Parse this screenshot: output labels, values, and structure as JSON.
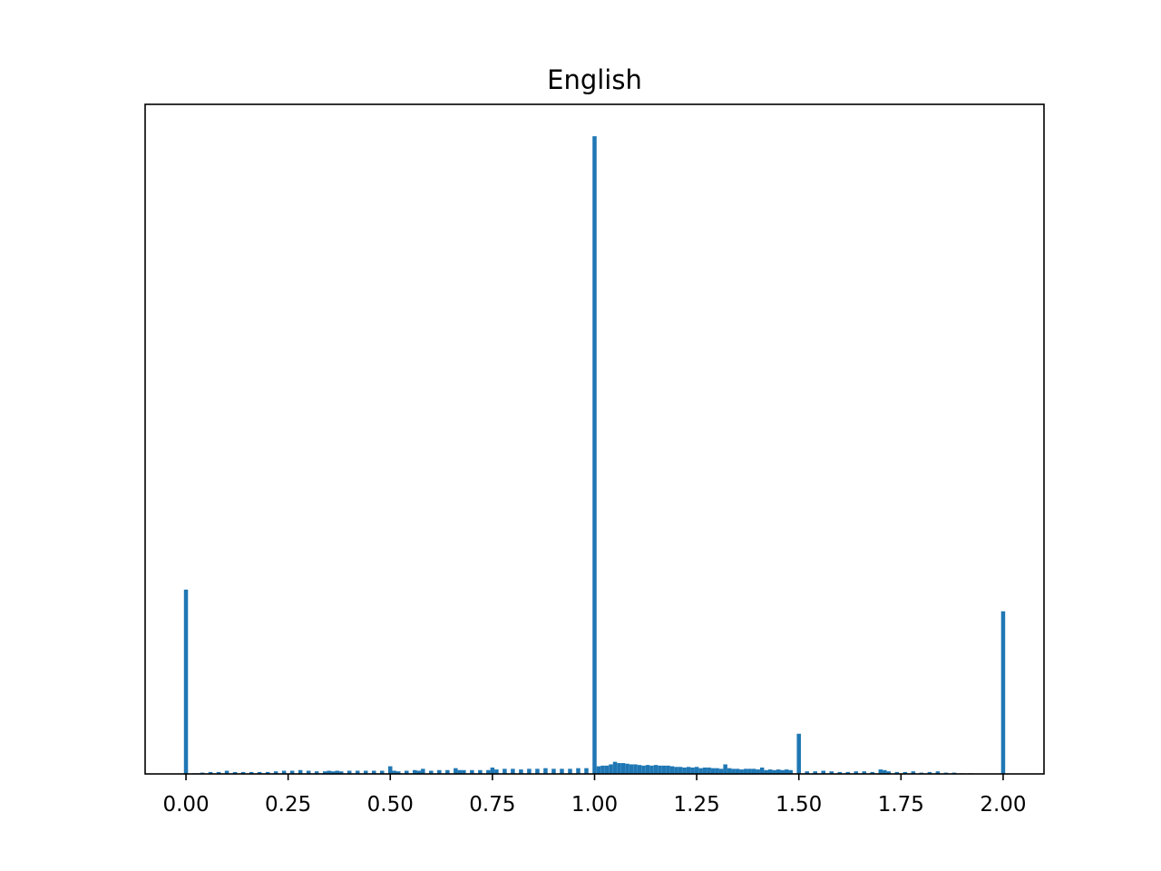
{
  "chart_data": {
    "type": "bar",
    "title": "English",
    "xlabel": "",
    "ylabel": "",
    "xlim": [
      -0.1,
      2.1
    ],
    "ylim": [
      0,
      1.05
    ],
    "x_tick_labels": [
      "0.00",
      "0.25",
      "0.50",
      "0.75",
      "1.00",
      "1.25",
      "1.50",
      "1.75",
      "2.00"
    ],
    "x_tick_values": [
      0,
      0.25,
      0.5,
      0.75,
      1.0,
      1.25,
      1.5,
      1.75,
      2.0
    ],
    "y_ticks_shown": false,
    "bar_color": "#1f77b4",
    "bin_width": 0.01,
    "bins": [
      {
        "x": 0.0,
        "v": 0.289
      },
      {
        "x": 0.02,
        "v": 0.001
      },
      {
        "x": 0.03,
        "v": 0.001
      },
      {
        "x": 0.04,
        "v": 0.002
      },
      {
        "x": 0.06,
        "v": 0.003
      },
      {
        "x": 0.08,
        "v": 0.003
      },
      {
        "x": 0.1,
        "v": 0.005
      },
      {
        "x": 0.12,
        "v": 0.003
      },
      {
        "x": 0.14,
        "v": 0.003
      },
      {
        "x": 0.16,
        "v": 0.003
      },
      {
        "x": 0.18,
        "v": 0.003
      },
      {
        "x": 0.2,
        "v": 0.003
      },
      {
        "x": 0.22,
        "v": 0.004
      },
      {
        "x": 0.24,
        "v": 0.005
      },
      {
        "x": 0.26,
        "v": 0.005
      },
      {
        "x": 0.28,
        "v": 0.006
      },
      {
        "x": 0.3,
        "v": 0.005
      },
      {
        "x": 0.32,
        "v": 0.004
      },
      {
        "x": 0.34,
        "v": 0.004
      },
      {
        "x": 0.35,
        "v": 0.005
      },
      {
        "x": 0.36,
        "v": 0.004
      },
      {
        "x": 0.37,
        "v": 0.005
      },
      {
        "x": 0.38,
        "v": 0.004
      },
      {
        "x": 0.4,
        "v": 0.005
      },
      {
        "x": 0.42,
        "v": 0.005
      },
      {
        "x": 0.44,
        "v": 0.005
      },
      {
        "x": 0.46,
        "v": 0.005
      },
      {
        "x": 0.48,
        "v": 0.005
      },
      {
        "x": 0.5,
        "v": 0.012
      },
      {
        "x": 0.51,
        "v": 0.005
      },
      {
        "x": 0.52,
        "v": 0.004
      },
      {
        "x": 0.54,
        "v": 0.005
      },
      {
        "x": 0.56,
        "v": 0.006
      },
      {
        "x": 0.57,
        "v": 0.005
      },
      {
        "x": 0.58,
        "v": 0.008
      },
      {
        "x": 0.6,
        "v": 0.005
      },
      {
        "x": 0.62,
        "v": 0.006
      },
      {
        "x": 0.64,
        "v": 0.006
      },
      {
        "x": 0.66,
        "v": 0.009
      },
      {
        "x": 0.67,
        "v": 0.006
      },
      {
        "x": 0.68,
        "v": 0.006
      },
      {
        "x": 0.7,
        "v": 0.006
      },
      {
        "x": 0.72,
        "v": 0.006
      },
      {
        "x": 0.74,
        "v": 0.006
      },
      {
        "x": 0.75,
        "v": 0.01
      },
      {
        "x": 0.76,
        "v": 0.007
      },
      {
        "x": 0.78,
        "v": 0.008
      },
      {
        "x": 0.8,
        "v": 0.008
      },
      {
        "x": 0.82,
        "v": 0.007
      },
      {
        "x": 0.84,
        "v": 0.008
      },
      {
        "x": 0.86,
        "v": 0.008
      },
      {
        "x": 0.88,
        "v": 0.009
      },
      {
        "x": 0.9,
        "v": 0.008
      },
      {
        "x": 0.92,
        "v": 0.008
      },
      {
        "x": 0.94,
        "v": 0.008
      },
      {
        "x": 0.96,
        "v": 0.009
      },
      {
        "x": 0.98,
        "v": 0.009
      },
      {
        "x": 1.0,
        "v": 1.0
      },
      {
        "x": 1.01,
        "v": 0.012
      },
      {
        "x": 1.02,
        "v": 0.013
      },
      {
        "x": 1.03,
        "v": 0.013
      },
      {
        "x": 1.04,
        "v": 0.015
      },
      {
        "x": 1.05,
        "v": 0.019
      },
      {
        "x": 1.06,
        "v": 0.017
      },
      {
        "x": 1.07,
        "v": 0.017
      },
      {
        "x": 1.08,
        "v": 0.016
      },
      {
        "x": 1.09,
        "v": 0.015
      },
      {
        "x": 1.1,
        "v": 0.015
      },
      {
        "x": 1.11,
        "v": 0.014
      },
      {
        "x": 1.12,
        "v": 0.013
      },
      {
        "x": 1.13,
        "v": 0.014
      },
      {
        "x": 1.14,
        "v": 0.013
      },
      {
        "x": 1.15,
        "v": 0.014
      },
      {
        "x": 1.16,
        "v": 0.013
      },
      {
        "x": 1.17,
        "v": 0.013
      },
      {
        "x": 1.18,
        "v": 0.013
      },
      {
        "x": 1.19,
        "v": 0.012
      },
      {
        "x": 1.2,
        "v": 0.011
      },
      {
        "x": 1.21,
        "v": 0.011
      },
      {
        "x": 1.22,
        "v": 0.01
      },
      {
        "x": 1.23,
        "v": 0.011
      },
      {
        "x": 1.24,
        "v": 0.01
      },
      {
        "x": 1.25,
        "v": 0.011
      },
      {
        "x": 1.26,
        "v": 0.009
      },
      {
        "x": 1.27,
        "v": 0.01
      },
      {
        "x": 1.28,
        "v": 0.01
      },
      {
        "x": 1.29,
        "v": 0.009
      },
      {
        "x": 1.3,
        "v": 0.009
      },
      {
        "x": 1.31,
        "v": 0.008
      },
      {
        "x": 1.32,
        "v": 0.015
      },
      {
        "x": 1.33,
        "v": 0.009
      },
      {
        "x": 1.34,
        "v": 0.008
      },
      {
        "x": 1.35,
        "v": 0.008
      },
      {
        "x": 1.36,
        "v": 0.007
      },
      {
        "x": 1.37,
        "v": 0.008
      },
      {
        "x": 1.38,
        "v": 0.008
      },
      {
        "x": 1.39,
        "v": 0.008
      },
      {
        "x": 1.4,
        "v": 0.007
      },
      {
        "x": 1.41,
        "v": 0.01
      },
      {
        "x": 1.42,
        "v": 0.006
      },
      {
        "x": 1.43,
        "v": 0.007
      },
      {
        "x": 1.44,
        "v": 0.006
      },
      {
        "x": 1.45,
        "v": 0.007
      },
      {
        "x": 1.46,
        "v": 0.006
      },
      {
        "x": 1.47,
        "v": 0.007
      },
      {
        "x": 1.48,
        "v": 0.006
      },
      {
        "x": 1.5,
        "v": 0.063
      },
      {
        "x": 1.52,
        "v": 0.004
      },
      {
        "x": 1.54,
        "v": 0.004
      },
      {
        "x": 1.56,
        "v": 0.005
      },
      {
        "x": 1.58,
        "v": 0.004
      },
      {
        "x": 1.6,
        "v": 0.003
      },
      {
        "x": 1.62,
        "v": 0.003
      },
      {
        "x": 1.64,
        "v": 0.004
      },
      {
        "x": 1.66,
        "v": 0.004
      },
      {
        "x": 1.68,
        "v": 0.003
      },
      {
        "x": 1.7,
        "v": 0.007
      },
      {
        "x": 1.71,
        "v": 0.006
      },
      {
        "x": 1.72,
        "v": 0.004
      },
      {
        "x": 1.74,
        "v": 0.003
      },
      {
        "x": 1.76,
        "v": 0.003
      },
      {
        "x": 1.78,
        "v": 0.004
      },
      {
        "x": 1.8,
        "v": 0.002
      },
      {
        "x": 1.82,
        "v": 0.003
      },
      {
        "x": 1.84,
        "v": 0.004
      },
      {
        "x": 1.86,
        "v": 0.002
      },
      {
        "x": 1.88,
        "v": 0.002
      },
      {
        "x": 1.9,
        "v": 0.001
      },
      {
        "x": 1.92,
        "v": 0.001
      },
      {
        "x": 2.0,
        "v": 0.255
      }
    ]
  }
}
